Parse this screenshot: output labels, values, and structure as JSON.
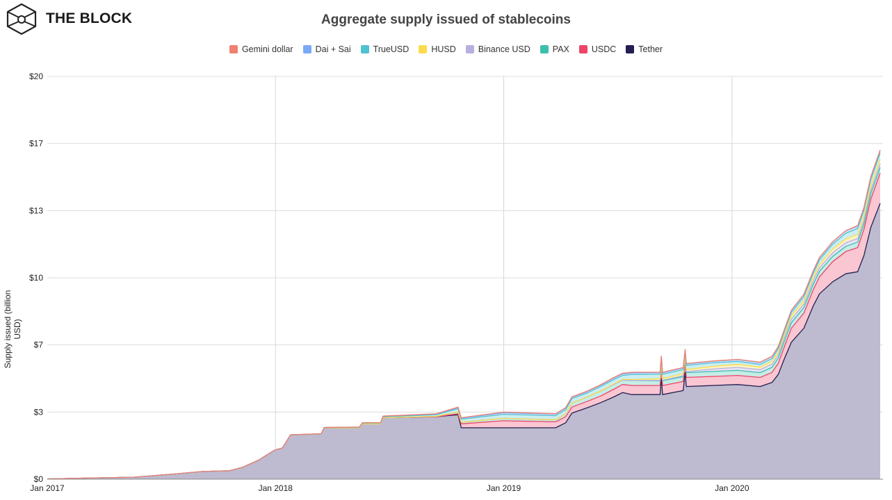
{
  "brand": {
    "name": "THE BLOCK"
  },
  "chart_data": {
    "type": "area",
    "stacked": true,
    "title": "Aggregate supply issued of stablecoins",
    "xlabel": "",
    "ylabel": "Supply issued (billion USD)",
    "ylim": [
      0,
      20
    ],
    "xlim": [
      "2017-01-01",
      "2020-08-25"
    ],
    "grid": true,
    "legend_position": "top",
    "y_ticks": [
      {
        "value": 0,
        "label": "$0"
      },
      {
        "value": 3.333,
        "label": "$3"
      },
      {
        "value": 6.667,
        "label": "$7"
      },
      {
        "value": 10,
        "label": "$10"
      },
      {
        "value": 13.333,
        "label": "$13"
      },
      {
        "value": 16.667,
        "label": "$17"
      },
      {
        "value": 20,
        "label": "$20"
      }
    ],
    "x_ticks": [
      {
        "value": "2017-01-01",
        "label": "Jan 2017"
      },
      {
        "value": "2018-01-01",
        "label": "Jan 2018"
      },
      {
        "value": "2019-01-01",
        "label": "Jan 2019"
      },
      {
        "value": "2020-01-01",
        "label": "Jan 2020"
      }
    ],
    "x": [
      "2017-01-01",
      "2017-03-01",
      "2017-05-20",
      "2017-07-20",
      "2017-09-05",
      "2017-10-20",
      "2017-11-10",
      "2017-12-05",
      "2017-12-31",
      "2018-01-12",
      "2018-01-25",
      "2018-03-15",
      "2018-03-20",
      "2018-05-15",
      "2018-05-20",
      "2018-06-18",
      "2018-06-22",
      "2018-09-15",
      "2018-10-20",
      "2018-10-25",
      "2019-01-01",
      "2019-03-25",
      "2019-04-10",
      "2019-04-20",
      "2019-05-15",
      "2019-06-05",
      "2019-06-25",
      "2019-07-10",
      "2019-07-25",
      "2019-09-08",
      "2019-09-10",
      "2019-09-12",
      "2019-10-15",
      "2019-10-18",
      "2019-10-20",
      "2019-12-01",
      "2020-01-10",
      "2020-02-15",
      "2020-03-05",
      "2020-03-15",
      "2020-03-25",
      "2020-04-05",
      "2020-04-25",
      "2020-05-10",
      "2020-05-20",
      "2020-06-10",
      "2020-07-01",
      "2020-07-20",
      "2020-07-30",
      "2020-08-10",
      "2020-08-25"
    ],
    "series": [
      {
        "name": "Tether",
        "color": "#231f52",
        "fill": "#bebacf",
        "values": [
          0.01,
          0.05,
          0.1,
          0.25,
          0.38,
          0.42,
          0.6,
          0.95,
          1.45,
          1.55,
          2.2,
          2.25,
          2.55,
          2.55,
          2.75,
          2.75,
          3.05,
          3.1,
          3.2,
          2.55,
          2.55,
          2.55,
          2.8,
          3.28,
          3.55,
          3.8,
          4.07,
          4.3,
          4.2,
          4.2,
          5.0,
          4.2,
          4.4,
          5.3,
          4.6,
          4.65,
          4.7,
          4.6,
          4.8,
          5.2,
          6.0,
          6.8,
          7.5,
          8.6,
          9.2,
          9.8,
          10.2,
          10.3,
          11.1,
          12.5,
          13.7
        ]
      },
      {
        "name": "USDC",
        "color": "#ee4466",
        "fill": "#f9c6d2",
        "values": [
          0,
          0,
          0,
          0,
          0,
          0,
          0,
          0,
          0,
          0,
          0,
          0,
          0,
          0,
          0,
          0,
          0,
          0,
          0.05,
          0.2,
          0.35,
          0.3,
          0.3,
          0.3,
          0.32,
          0.33,
          0.38,
          0.4,
          0.45,
          0.45,
          0.45,
          0.45,
          0.45,
          0.45,
          0.45,
          0.45,
          0.45,
          0.45,
          0.5,
          0.55,
          0.6,
          0.7,
          0.75,
          0.8,
          0.85,
          1.0,
          1.1,
          1.2,
          1.3,
          1.4,
          1.5
        ]
      },
      {
        "name": "PAX",
        "color": "#3dbfae",
        "fill": "#c6ece6",
        "values": [
          0,
          0,
          0,
          0,
          0,
          0,
          0,
          0,
          0,
          0,
          0,
          0,
          0,
          0,
          0,
          0,
          0,
          0.02,
          0.1,
          0.08,
          0.12,
          0.1,
          0.15,
          0.2,
          0.22,
          0.25,
          0.24,
          0.22,
          0.25,
          0.24,
          0.24,
          0.24,
          0.24,
          0.24,
          0.24,
          0.25,
          0.25,
          0.24,
          0.25,
          0.26,
          0.27,
          0.27,
          0.27,
          0.27,
          0.27,
          0.26,
          0.26,
          0.27,
          0.27,
          0.28,
          0.28
        ]
      },
      {
        "name": "Binance USD",
        "color": "#b8b0e0",
        "fill": "#e6e2f4",
        "values": [
          0,
          0,
          0,
          0,
          0,
          0,
          0,
          0,
          0,
          0,
          0,
          0,
          0,
          0,
          0,
          0,
          0,
          0,
          0,
          0,
          0,
          0,
          0,
          0,
          0,
          0,
          0,
          0,
          0,
          0.02,
          0.02,
          0.02,
          0.05,
          0.05,
          0.05,
          0.12,
          0.15,
          0.15,
          0.16,
          0.17,
          0.17,
          0.17,
          0.18,
          0.18,
          0.18,
          0.18,
          0.18,
          0.18,
          0.18,
          0.18,
          0.18
        ]
      },
      {
        "name": "HUSD",
        "color": "#fcdc4d",
        "fill": "#fdf3c4",
        "values": [
          0,
          0,
          0,
          0,
          0,
          0,
          0,
          0,
          0,
          0,
          0,
          0,
          0,
          0,
          0,
          0,
          0,
          0,
          0,
          0,
          0,
          0,
          0,
          0,
          0,
          0,
          0.02,
          0.03,
          0.05,
          0.08,
          0.08,
          0.08,
          0.1,
          0.1,
          0.1,
          0.13,
          0.15,
          0.13,
          0.14,
          0.15,
          0.15,
          0.16,
          0.17,
          0.17,
          0.17,
          0.18,
          0.19,
          0.2,
          0.2,
          0.21,
          0.22
        ]
      },
      {
        "name": "TrueUSD",
        "color": "#4fc1d0",
        "fill": "#cbeef2",
        "values": [
          0,
          0,
          0,
          0,
          0,
          0,
          0,
          0,
          0,
          0,
          0,
          0.01,
          0.02,
          0.03,
          0.03,
          0.04,
          0.05,
          0.08,
          0.15,
          0.15,
          0.2,
          0.2,
          0.2,
          0.22,
          0.2,
          0.22,
          0.22,
          0.2,
          0.25,
          0.22,
          0.22,
          0.22,
          0.2,
          0.2,
          0.2,
          0.18,
          0.15,
          0.13,
          0.14,
          0.15,
          0.16,
          0.18,
          0.2,
          0.2,
          0.22,
          0.25,
          0.28,
          0.3,
          0.3,
          0.3,
          0.32
        ]
      },
      {
        "name": "Dai + Sai",
        "color": "#7aa9f5",
        "fill": "#d6e4fc",
        "values": [
          0,
          0,
          0,
          0,
          0,
          0,
          0,
          0,
          0,
          0,
          0,
          0,
          0,
          0.01,
          0.02,
          0.02,
          0.03,
          0.04,
          0.05,
          0.05,
          0.08,
          0.08,
          0.08,
          0.07,
          0.07,
          0.07,
          0.08,
          0.08,
          0.08,
          0.08,
          0.08,
          0.08,
          0.08,
          0.08,
          0.08,
          0.08,
          0.09,
          0.1,
          0.1,
          0.1,
          0.1,
          0.1,
          0.11,
          0.11,
          0.11,
          0.11,
          0.12,
          0.12,
          0.12,
          0.13,
          0.13
        ]
      },
      {
        "name": "Gemini dollar",
        "color": "#f08070",
        "fill": "#fbd5cf",
        "values": [
          0,
          0,
          0,
          0,
          0,
          0,
          0,
          0,
          0,
          0,
          0,
          0,
          0,
          0,
          0,
          0,
          0,
          0.01,
          0.03,
          0.02,
          0.03,
          0.02,
          0.02,
          0.02,
          0.02,
          0.02,
          0.02,
          0.03,
          0.03,
          0.02,
          0.02,
          0.02,
          0.02,
          0.02,
          0.02,
          0.01,
          0.01,
          0.01,
          0.01,
          0.01,
          0.01,
          0.01,
          0.01,
          0.01,
          0.01,
          0.01,
          0.01,
          0.02,
          0.02,
          0.02,
          0.02
        ]
      }
    ],
    "legend_order": [
      "Gemini dollar",
      "Dai + Sai",
      "TrueUSD",
      "HUSD",
      "Binance USD",
      "PAX",
      "USDC",
      "Tether"
    ]
  }
}
